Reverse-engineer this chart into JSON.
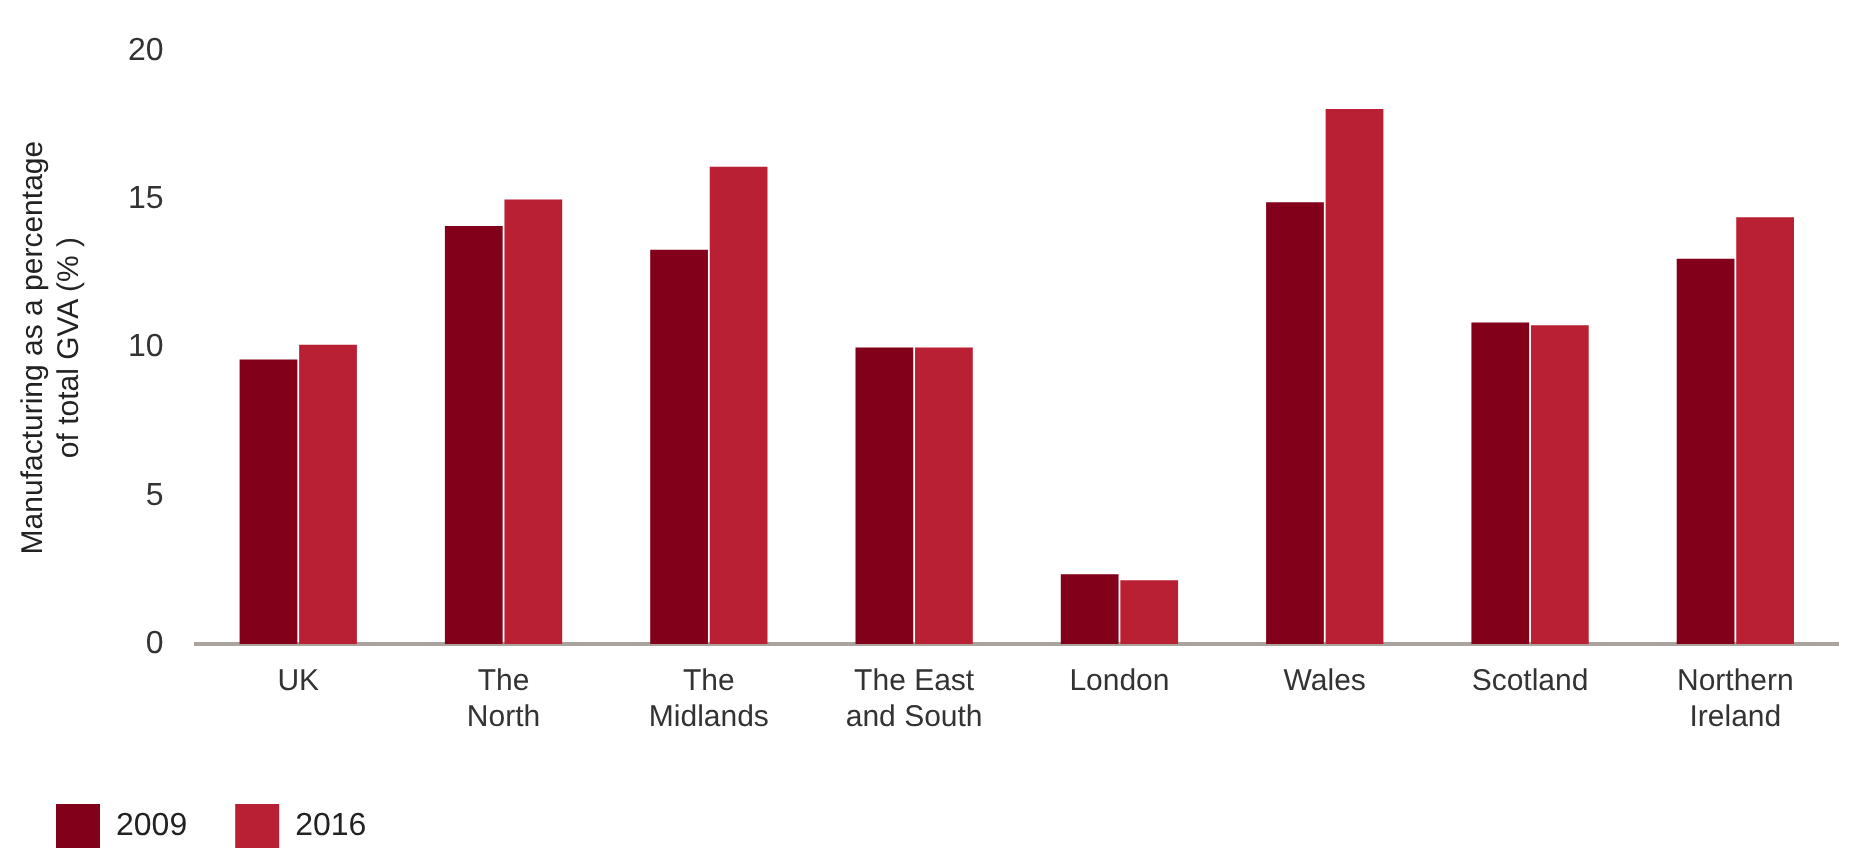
{
  "chart_data": {
    "type": "bar",
    "ylabel": "Manufacturing as a percentage\nof total GVA (% )",
    "categories": [
      "UK",
      "The\nNorth",
      "The\nMidlands",
      "The East\nand South",
      "London",
      "Wales",
      "Scotland",
      "Northern\nIreland"
    ],
    "series": [
      {
        "name": "2009",
        "color": "#820019",
        "values": [
          9.6,
          14.1,
          13.3,
          10.0,
          2.35,
          14.9,
          10.85,
          13.0
        ]
      },
      {
        "name": "2016",
        "color": "#b92034",
        "values": [
          10.1,
          15.0,
          16.1,
          10.0,
          2.15,
          18.05,
          10.75,
          14.4
        ]
      }
    ],
    "ylim": [
      0,
      20
    ],
    "yticks": [
      0,
      5,
      10,
      15,
      20
    ],
    "grid": false,
    "legend": "bottom left"
  }
}
